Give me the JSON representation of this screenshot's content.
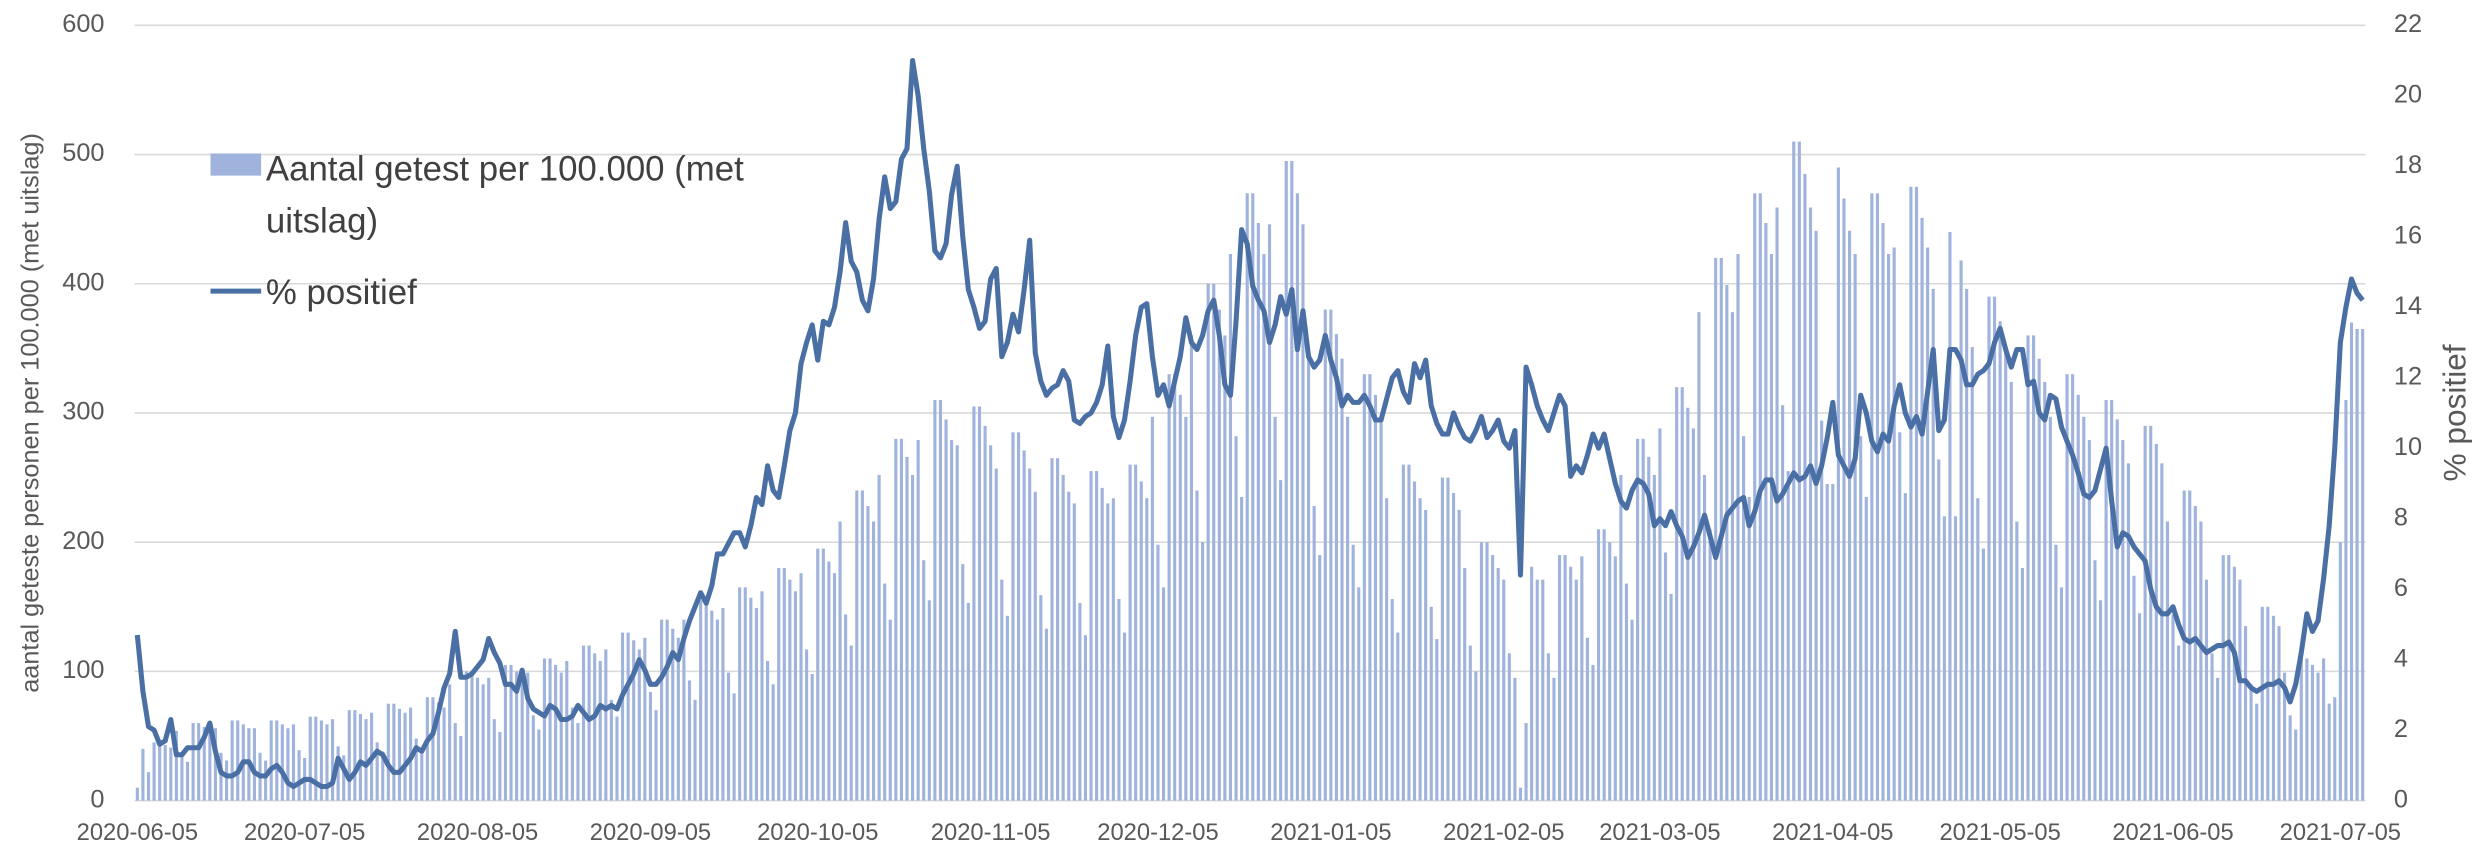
{
  "chart_data": {
    "type": "bar",
    "ylabel": "aantal geteste personen per 100.000 (met uitslag)",
    "y2label": "% positief",
    "ylim": [
      0,
      600
    ],
    "yticks": [
      0,
      100,
      200,
      300,
      400,
      500,
      600
    ],
    "y2lim": [
      0,
      22
    ],
    "y2ticks": [
      0,
      2,
      4,
      6,
      8,
      10,
      12,
      14,
      16,
      18,
      20,
      22
    ],
    "grid": true,
    "legend": "upper left",
    "categories": [
      "2020-06-05",
      null,
      null,
      null,
      null,
      null,
      null,
      null,
      null,
      null,
      null,
      null,
      null,
      null,
      null,
      null,
      null,
      null,
      null,
      null,
      null,
      null,
      null,
      null,
      null,
      null,
      null,
      null,
      null,
      null,
      "2020-07-05",
      null,
      null,
      null,
      null,
      null,
      null,
      null,
      null,
      null,
      null,
      null,
      null,
      null,
      null,
      null,
      null,
      null,
      null,
      null,
      null,
      null,
      null,
      null,
      null,
      null,
      null,
      null,
      null,
      null,
      null,
      "2020-08-05",
      null,
      null,
      null,
      null,
      null,
      null,
      null,
      null,
      null,
      null,
      null,
      null,
      null,
      null,
      null,
      null,
      null,
      null,
      null,
      null,
      null,
      null,
      null,
      null,
      null,
      null,
      null,
      null,
      null,
      null,
      "2020-09-05",
      null,
      null,
      null,
      null,
      null,
      null,
      null,
      null,
      null,
      null,
      null,
      null,
      null,
      null,
      null,
      null,
      null,
      null,
      null,
      null,
      null,
      null,
      null,
      null,
      null,
      null,
      null,
      null,
      null,
      "2020-10-05",
      null,
      null,
      null,
      null,
      null,
      null,
      null,
      null,
      null,
      null,
      null,
      null,
      null,
      null,
      null,
      null,
      null,
      null,
      null,
      null,
      null,
      null,
      null,
      null,
      null,
      null,
      null,
      null,
      null,
      null,
      "2020-11-05",
      null,
      null,
      null,
      null,
      null,
      null,
      null,
      null,
      null,
      null,
      null,
      null,
      null,
      null,
      null,
      null,
      null,
      null,
      null,
      null,
      null,
      null,
      null,
      null,
      null,
      null,
      null,
      null,
      null,
      "2020-12-05",
      null,
      null,
      null,
      null,
      null,
      null,
      null,
      null,
      null,
      null,
      null,
      null,
      null,
      null,
      null,
      null,
      null,
      null,
      null,
      null,
      null,
      null,
      null,
      null,
      null,
      null,
      null,
      null,
      null,
      null,
      "2021-01-05",
      null,
      null,
      null,
      null,
      null,
      null,
      null,
      null,
      null,
      null,
      null,
      null,
      null,
      null,
      null,
      null,
      null,
      null,
      null,
      null,
      null,
      null,
      null,
      null,
      null,
      null,
      null,
      null,
      null,
      null,
      "2021-02-05",
      null,
      null,
      null,
      null,
      null,
      null,
      null,
      null,
      null,
      null,
      null,
      null,
      null,
      null,
      null,
      null,
      null,
      null,
      null,
      null,
      null,
      null,
      null,
      null,
      null,
      null,
      null,
      "2021-03-05",
      null,
      null,
      null,
      null,
      null,
      null,
      null,
      null,
      null,
      null,
      null,
      null,
      null,
      null,
      null,
      null,
      null,
      null,
      null,
      null,
      null,
      null,
      null,
      null,
      null,
      null,
      null,
      null,
      null,
      null,
      "2021-04-05",
      null,
      null,
      null,
      null,
      null,
      null,
      null,
      null,
      null,
      null,
      null,
      null,
      null,
      null,
      null,
      null,
      null,
      null,
      null,
      null,
      null,
      null,
      null,
      null,
      null,
      null,
      null,
      null,
      null,
      "2021-05-05",
      null,
      null,
      null,
      null,
      null,
      null,
      null,
      null,
      null,
      null,
      null,
      null,
      null,
      null,
      null,
      null,
      null,
      null,
      null,
      null,
      null,
      null,
      null,
      null,
      null,
      null,
      null,
      null,
      null,
      null,
      "2021-06-05",
      null,
      null,
      null,
      null,
      null,
      null,
      null,
      null,
      null,
      null,
      null,
      null,
      null,
      null,
      null,
      null,
      null,
      null,
      null,
      null,
      null,
      null,
      null,
      null,
      null,
      null,
      null,
      null,
      null,
      "2021-07-05",
      null,
      null,
      null,
      null
    ],
    "series": [
      {
        "name": "Aantal getest per 100.000 (met uitslag)",
        "type": "bar",
        "color": "#9fb3dc",
        "values": [
          10,
          40,
          22,
          45,
          45,
          43,
          41,
          54,
          36,
          30,
          60,
          60,
          57,
          54,
          56,
          37,
          31,
          62,
          62,
          59,
          56,
          56,
          37,
          31,
          62,
          62,
          59,
          56,
          59,
          39,
          33,
          65,
          65,
          62,
          59,
          63,
          42,
          35,
          70,
          70,
          67,
          63,
          68,
          45,
          38,
          75,
          75,
          71,
          68,
          72,
          48,
          40,
          80,
          80,
          76,
          72,
          90,
          60,
          50,
          100,
          100,
          95,
          90,
          95,
          63,
          53,
          105,
          105,
          100,
          95,
          99,
          66,
          55,
          110,
          110,
          105,
          99,
          108,
          72,
          60,
          120,
          120,
          114,
          108,
          117,
          78,
          65,
          130,
          130,
          124,
          117,
          126,
          84,
          70,
          140,
          140,
          133,
          126,
          140,
          93,
          78,
          155,
          155,
          147,
          140,
          149,
          99,
          83,
          165,
          165,
          157,
          149,
          162,
          108,
          90,
          180,
          180,
          171,
          162,
          176,
          117,
          98,
          195,
          195,
          185,
          176,
          216,
          144,
          120,
          240,
          240,
          228,
          216,
          252,
          168,
          140,
          280,
          280,
          266,
          252,
          279,
          186,
          155,
          310,
          310,
          295,
          279,
          275,
          183,
          153,
          305,
          305,
          290,
          275,
          257,
          171,
          143,
          285,
          285,
          271,
          257,
          239,
          159,
          133,
          265,
          265,
          252,
          239,
          230,
          153,
          128,
          255,
          255,
          242,
          230,
          234,
          156,
          130,
          260,
          260,
          247,
          234,
          297,
          198,
          165,
          330,
          330,
          314,
          297,
          360,
          240,
          200,
          400,
          400,
          380,
          360,
          423,
          282,
          235,
          470,
          470,
          447,
          423,
          446,
          297,
          248,
          495,
          495,
          470,
          446,
          342,
          228,
          190,
          380,
          380,
          361,
          342,
          297,
          198,
          165,
          330,
          330,
          314,
          297,
          234,
          156,
          130,
          260,
          260,
          247,
          234,
          225,
          150,
          125,
          250,
          250,
          238,
          225,
          180,
          120,
          100,
          200,
          200,
          190,
          180,
          171,
          114,
          95,
          10,
          60,
          181,
          171,
          171,
          114,
          95,
          190,
          190,
          181,
          171,
          189,
          126,
          105,
          210,
          210,
          200,
          189,
          252,
          168,
          140,
          280,
          280,
          266,
          252,
          288,
          192,
          160,
          320,
          320,
          304,
          288,
          378,
          252,
          210,
          420,
          420,
          399,
          378,
          423,
          282,
          235,
          470,
          470,
          447,
          423,
          459,
          306,
          255,
          510,
          510,
          485,
          459,
          441,
          294,
          245,
          245,
          490,
          466,
          441,
          423,
          282,
          235,
          470,
          470,
          447,
          423,
          428,
          285,
          238,
          475,
          475,
          451,
          428,
          396,
          264,
          220,
          440,
          220,
          418,
          396,
          351,
          234,
          195,
          390,
          390,
          371,
          351,
          324,
          216,
          180,
          360,
          360,
          342,
          324,
          297,
          198,
          165,
          330,
          330,
          314,
          297,
          279,
          186,
          155,
          310,
          310,
          295,
          279,
          261,
          174,
          145,
          290,
          290,
          276,
          261,
          216,
          144,
          120,
          240,
          240,
          228,
          216,
          171,
          114,
          95,
          190,
          190,
          181,
          171,
          135,
          90,
          75,
          150,
          150,
          143,
          135,
          99,
          66,
          55,
          110,
          110,
          105,
          99,
          110,
          75,
          80,
          200,
          310,
          370,
          365,
          365
        ]
      },
      {
        "name": "% positief",
        "type": "line",
        "axis": "y2",
        "color": "#4a6fa5",
        "values": [
          4.7,
          3.1,
          2.1,
          2.0,
          1.6,
          1.7,
          2.3,
          1.3,
          1.3,
          1.5,
          1.5,
          1.5,
          1.8,
          2.2,
          1.4,
          0.8,
          0.7,
          0.7,
          0.8,
          1.1,
          1.1,
          0.8,
          0.7,
          0.7,
          0.9,
          1.0,
          0.8,
          0.5,
          0.4,
          0.5,
          0.6,
          0.6,
          0.5,
          0.4,
          0.4,
          0.5,
          1.2,
          0.9,
          0.6,
          0.8,
          1.1,
          1.0,
          1.2,
          1.4,
          1.3,
          1.0,
          0.8,
          0.8,
          1.0,
          1.2,
          1.5,
          1.4,
          1.7,
          1.9,
          2.5,
          3.2,
          3.6,
          4.8,
          3.5,
          3.5,
          3.6,
          3.8,
          4.0,
          4.6,
          4.2,
          3.9,
          3.3,
          3.3,
          3.1,
          3.7,
          2.9,
          2.6,
          2.5,
          2.4,
          2.7,
          2.6,
          2.3,
          2.3,
          2.4,
          2.7,
          2.5,
          2.3,
          2.4,
          2.7,
          2.6,
          2.7,
          2.6,
          3.0,
          3.3,
          3.6,
          4.0,
          3.7,
          3.3,
          3.3,
          3.5,
          3.8,
          4.2,
          4.0,
          4.6,
          5.1,
          5.5,
          5.9,
          5.6,
          6.1,
          7.0,
          7.0,
          7.3,
          7.6,
          7.6,
          7.2,
          7.8,
          8.6,
          8.4,
          9.5,
          8.8,
          8.6,
          9.5,
          10.5,
          11.0,
          12.4,
          13.0,
          13.5,
          12.5,
          13.6,
          13.5,
          14.0,
          15.0,
          16.4,
          15.3,
          15.0,
          14.2,
          13.9,
          14.8,
          16.5,
          17.7,
          16.8,
          17.0,
          18.2,
          18.5,
          21.0,
          20.0,
          18.5,
          17.3,
          15.6,
          15.4,
          15.8,
          17.2,
          18.0,
          16.0,
          14.5,
          14.0,
          13.4,
          13.6,
          14.8,
          15.1,
          12.6,
          13.0,
          13.8,
          13.3,
          14.5,
          15.9,
          12.7,
          11.9,
          11.5,
          11.7,
          11.8,
          12.2,
          11.9,
          10.8,
          10.7,
          10.9,
          11.0,
          11.3,
          11.8,
          12.9,
          10.9,
          10.3,
          10.8,
          11.9,
          13.2,
          14.0,
          14.1,
          12.6,
          11.5,
          11.8,
          11.2,
          11.9,
          12.6,
          13.7,
          13.0,
          12.8,
          13.2,
          13.9,
          14.2,
          13.2,
          11.8,
          11.5,
          13.6,
          16.2,
          15.8,
          14.6,
          14.2,
          13.9,
          13.0,
          13.5,
          14.3,
          13.8,
          14.5,
          12.8,
          13.9,
          12.6,
          12.3,
          12.5,
          13.2,
          12.5,
          12.0,
          11.2,
          11.5,
          11.3,
          11.3,
          11.5,
          11.2,
          10.8,
          10.8,
          11.4,
          12.0,
          12.2,
          11.6,
          11.3,
          12.4,
          12.0,
          12.5,
          11.2,
          10.7,
          10.4,
          10.4,
          11.0,
          10.6,
          10.3,
          10.2,
          10.5,
          10.9,
          10.3,
          10.5,
          10.8,
          10.2,
          10.0,
          10.5,
          6.4,
          12.3,
          11.8,
          11.2,
          10.8,
          10.5,
          11.0,
          11.5,
          11.2,
          9.2,
          9.5,
          9.3,
          9.8,
          10.4,
          10.0,
          10.4,
          9.7,
          9.0,
          8.5,
          8.3,
          8.8,
          9.1,
          9.0,
          8.7,
          7.8,
          8.0,
          7.8,
          8.2,
          7.8,
          7.5,
          6.9,
          7.2,
          7.6,
          8.1,
          7.5,
          6.9,
          7.5,
          8.1,
          8.3,
          8.5,
          8.6,
          7.8,
          8.2,
          8.8,
          9.1,
          9.1,
          8.5,
          8.7,
          9.0,
          9.3,
          9.1,
          9.2,
          9.5,
          9.0,
          9.5,
          10.3,
          11.3,
          9.8,
          9.5,
          9.2,
          9.7,
          11.5,
          11.0,
          10.2,
          9.9,
          10.4,
          10.2,
          11.2,
          11.8,
          11.0,
          10.6,
          10.9,
          10.4,
          11.6,
          12.8,
          10.5,
          10.8,
          12.8,
          12.8,
          12.5,
          11.8,
          11.8,
          12.1,
          12.2,
          12.4,
          13.0,
          13.4,
          12.8,
          12.3,
          12.8,
          12.8,
          11.8,
          11.9,
          11.0,
          10.8,
          11.5,
          11.4,
          10.6,
          10.2,
          9.8,
          9.3,
          8.7,
          8.6,
          8.8,
          9.4,
          10.0,
          8.5,
          7.2,
          7.6,
          7.5,
          7.2,
          7.0,
          6.8,
          6.0,
          5.5,
          5.3,
          5.3,
          5.5,
          5.0,
          4.6,
          4.5,
          4.6,
          4.4,
          4.2,
          4.3,
          4.4,
          4.4,
          4.5,
          4.2,
          3.4,
          3.4,
          3.2,
          3.1,
          3.2,
          3.3,
          3.3,
          3.4,
          3.2,
          2.8,
          3.3,
          4.2,
          5.3,
          4.8,
          5.1,
          6.3,
          7.8,
          10.0,
          13.0,
          14.0,
          14.8,
          14.4,
          14.2
        ]
      }
    ]
  }
}
